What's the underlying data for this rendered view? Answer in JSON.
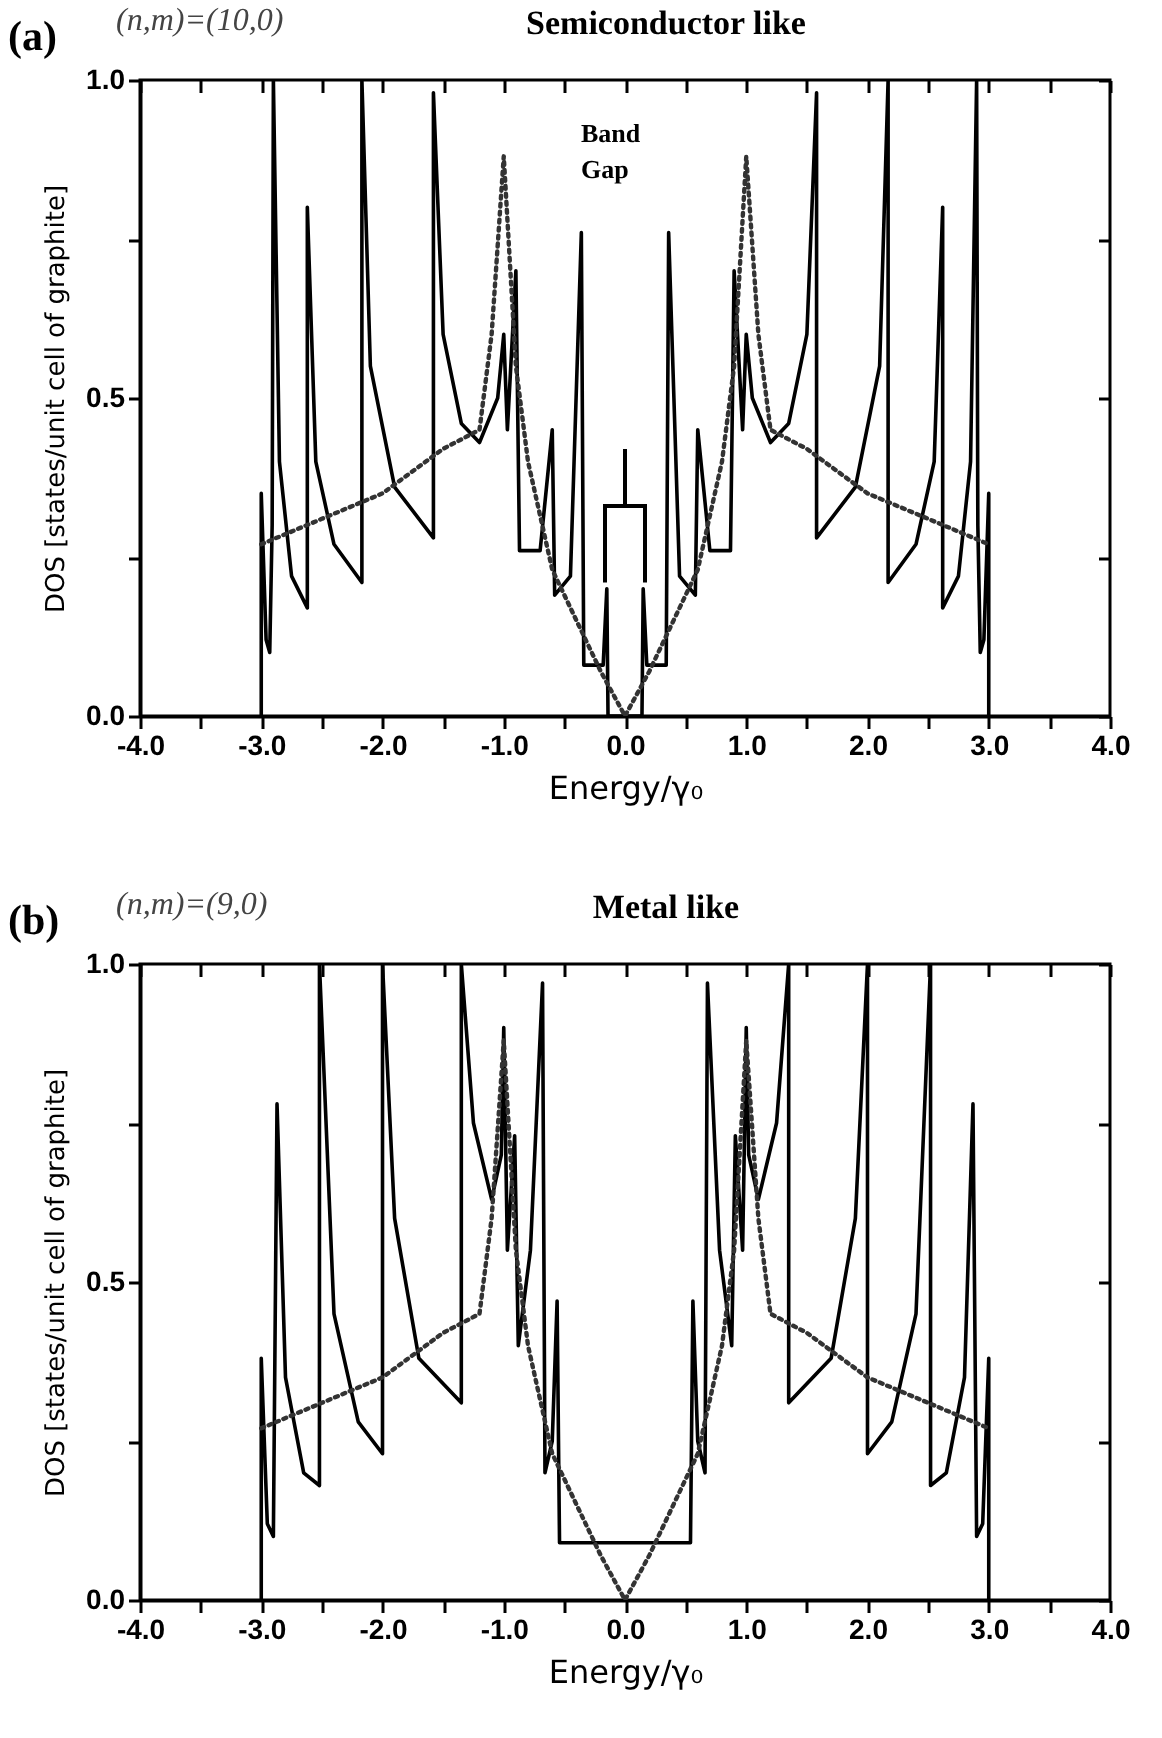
{
  "chart_data": [
    {
      "type": "line",
      "title": "Semiconductor like",
      "subtitle": "(n,m)=(10,0)",
      "xlabel": "Energy/γ₀",
      "ylabel": "DOS [states/unit cell of graphite]",
      "annotations": [
        "(a)",
        "Band Gap"
      ],
      "xlim": [
        -4,
        4
      ],
      "ylim": [
        0,
        1
      ],
      "xticks": [
        {
          "value": -4,
          "label": "-4.0"
        },
        {
          "value": -3.5,
          "label": null
        },
        {
          "value": -3,
          "label": "-3.0"
        },
        {
          "value": -2.5,
          "label": null
        },
        {
          "value": -2,
          "label": "-2.0"
        },
        {
          "value": -1.5,
          "label": null
        },
        {
          "value": -1,
          "label": "-1.0"
        },
        {
          "value": -0.5,
          "label": null
        },
        {
          "value": 0,
          "label": "0.0"
        },
        {
          "value": 0.5,
          "label": null
        },
        {
          "value": 1,
          "label": "1.0"
        },
        {
          "value": 1.5,
          "label": null
        },
        {
          "value": 2,
          "label": "2.0"
        },
        {
          "value": 2.5,
          "label": null
        },
        {
          "value": 3,
          "label": "3.0"
        },
        {
          "value": 3.5,
          "label": null
        },
        {
          "value": 4,
          "label": "4.0"
        }
      ],
      "yticks": [
        {
          "value": 0,
          "label": "0.0"
        },
        {
          "value": 0.25,
          "label": null
        },
        {
          "value": 0.5,
          "label": "0.5"
        },
        {
          "value": 0.75,
          "label": null
        },
        {
          "value": 1,
          "label": "1.0"
        }
      ],
      "grid": false,
      "series": [
        {
          "color": "#000000",
          "line_style": "solid",
          "x": [
            -3,
            -3,
            -2.96,
            -2.93,
            -2.91,
            -2.9,
            -2.85,
            -2.75,
            -2.62,
            -2.62,
            -2.55,
            -2.4,
            -2.17,
            -2.17,
            -2.1,
            -1.9,
            -1.58,
            -1.58,
            -1.5,
            -1.35,
            -1.2,
            -1.05,
            -1.0,
            -0.97,
            -0.9,
            -0.87,
            -0.7,
            -0.6,
            -0.58,
            -0.45,
            -0.36,
            -0.34,
            -0.18,
            -0.15,
            -0.14,
            0,
            0.14,
            0.15,
            0.18,
            0.34,
            0.36,
            0.45,
            0.58,
            0.6,
            0.7,
            0.87,
            0.9,
            0.97,
            1.0,
            1.05,
            1.2,
            1.35,
            1.5,
            1.58,
            1.58,
            1.9,
            2.1,
            2.17,
            2.17,
            2.4,
            2.55,
            2.62,
            2.62,
            2.75,
            2.85,
            2.9,
            2.91,
            2.93,
            2.96,
            3,
            3
          ],
          "values": [
            0,
            0.35,
            0.12,
            0.1,
            0.3,
            1.0,
            0.4,
            0.22,
            0.17,
            0.8,
            0.4,
            0.27,
            0.21,
            1.0,
            0.55,
            0.36,
            0.28,
            0.98,
            0.6,
            0.46,
            0.43,
            0.5,
            0.6,
            0.45,
            0.7,
            0.26,
            0.26,
            0.45,
            0.19,
            0.22,
            0.76,
            0.08,
            0.08,
            0.2,
            0,
            0,
            0,
            0.2,
            0.08,
            0.08,
            0.76,
            0.22,
            0.19,
            0.45,
            0.26,
            0.26,
            0.7,
            0.45,
            0.6,
            0.5,
            0.43,
            0.46,
            0.6,
            0.98,
            0.28,
            0.36,
            0.55,
            1.0,
            0.21,
            0.27,
            0.4,
            0.8,
            0.17,
            0.22,
            0.4,
            1.0,
            0.3,
            0.1,
            0.12,
            0.35,
            0
          ]
        },
        {
          "color": "#333333",
          "line_style": "dotted",
          "x": [
            -3,
            -2.5,
            -2,
            -1.5,
            -1.2,
            -1.1,
            -1.0,
            -0.9,
            -0.8,
            -0.6,
            -0.4,
            -0.2,
            0,
            0.2,
            0.4,
            0.6,
            0.8,
            0.9,
            1.0,
            1.1,
            1.2,
            1.5,
            2,
            2.5,
            3
          ],
          "values": [
            0.27,
            0.31,
            0.35,
            0.42,
            0.45,
            0.6,
            0.88,
            0.55,
            0.4,
            0.23,
            0.15,
            0.07,
            0,
            0.07,
            0.15,
            0.23,
            0.4,
            0.55,
            0.88,
            0.6,
            0.45,
            0.42,
            0.35,
            0.31,
            0.27
          ]
        }
      ]
    },
    {
      "type": "line",
      "title": "Metal like",
      "subtitle": "(n,m)=(9,0)",
      "xlabel": "Energy/γ₀",
      "ylabel": "DOS [states/unit cell of graphite]",
      "annotations": [
        "(b)"
      ],
      "xlim": [
        -4,
        4
      ],
      "ylim": [
        0,
        1
      ],
      "xticks": [
        {
          "value": -4,
          "label": "-4.0"
        },
        {
          "value": -3.5,
          "label": null
        },
        {
          "value": -3,
          "label": "-3.0"
        },
        {
          "value": -2.5,
          "label": null
        },
        {
          "value": -2,
          "label": "-2.0"
        },
        {
          "value": -1.5,
          "label": null
        },
        {
          "value": -1,
          "label": "-1.0"
        },
        {
          "value": -0.5,
          "label": null
        },
        {
          "value": 0,
          "label": "0.0"
        },
        {
          "value": 0.5,
          "label": null
        },
        {
          "value": 1,
          "label": "1.0"
        },
        {
          "value": 1.5,
          "label": null
        },
        {
          "value": 2,
          "label": "2.0"
        },
        {
          "value": 2.5,
          "label": null
        },
        {
          "value": 3,
          "label": "3.0"
        },
        {
          "value": 3.5,
          "label": null
        },
        {
          "value": 4,
          "label": "4.0"
        }
      ],
      "yticks": [
        {
          "value": 0,
          "label": "0.0"
        },
        {
          "value": 0.25,
          "label": null
        },
        {
          "value": 0.5,
          "label": "0.5"
        },
        {
          "value": 0.75,
          "label": null
        },
        {
          "value": 1,
          "label": "1.0"
        }
      ],
      "grid": false,
      "series": [
        {
          "color": "#000000",
          "line_style": "solid",
          "x": [
            -3,
            -3,
            -2.95,
            -2.9,
            -2.87,
            -2.8,
            -2.65,
            -2.52,
            -2.52,
            -2.4,
            -2.2,
            -2.0,
            -2.0,
            -1.9,
            -1.7,
            -1.35,
            -1.35,
            -1.25,
            -1.1,
            -1.02,
            -1.0,
            -0.97,
            -0.91,
            -0.88,
            -0.78,
            -0.68,
            -0.66,
            -0.6,
            -0.56,
            -0.54,
            0,
            0.54,
            0.56,
            0.6,
            0.66,
            0.68,
            0.78,
            0.88,
            0.91,
            0.97,
            1.0,
            1.02,
            1.1,
            1.25,
            1.35,
            1.35,
            1.7,
            1.9,
            2.0,
            2.0,
            2.2,
            2.4,
            2.52,
            2.52,
            2.65,
            2.8,
            2.87,
            2.9,
            2.95,
            3,
            3
          ],
          "values": [
            0,
            0.38,
            0.12,
            0.1,
            0.78,
            0.35,
            0.2,
            0.18,
            1.0,
            0.45,
            0.28,
            0.23,
            1.0,
            0.6,
            0.38,
            0.31,
            1.0,
            0.75,
            0.63,
            0.7,
            0.9,
            0.55,
            0.73,
            0.4,
            0.55,
            0.97,
            0.2,
            0.25,
            0.47,
            0.09,
            0.09,
            0.09,
            0.47,
            0.25,
            0.2,
            0.97,
            0.55,
            0.4,
            0.73,
            0.55,
            0.9,
            0.7,
            0.63,
            0.75,
            1.0,
            0.31,
            0.38,
            0.6,
            1.0,
            0.23,
            0.28,
            0.45,
            1.0,
            0.18,
            0.2,
            0.35,
            0.78,
            0.1,
            0.12,
            0.38,
            0
          ]
        },
        {
          "color": "#333333",
          "line_style": "dotted",
          "x": [
            -3,
            -2.5,
            -2,
            -1.5,
            -1.2,
            -1.1,
            -1.0,
            -0.9,
            -0.8,
            -0.6,
            -0.4,
            -0.2,
            0,
            0.2,
            0.4,
            0.6,
            0.8,
            0.9,
            1.0,
            1.1,
            1.2,
            1.5,
            2,
            2.5,
            3
          ],
          "values": [
            0.27,
            0.31,
            0.35,
            0.42,
            0.45,
            0.6,
            0.88,
            0.55,
            0.4,
            0.23,
            0.15,
            0.07,
            0,
            0.07,
            0.15,
            0.23,
            0.4,
            0.55,
            0.88,
            0.6,
            0.45,
            0.42,
            0.35,
            0.31,
            0.27
          ]
        }
      ]
    }
  ]
}
